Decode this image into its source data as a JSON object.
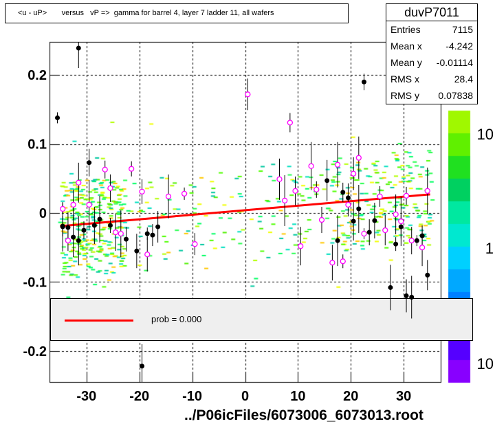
{
  "title": "<u - uP>       versus   vP =>  gamma for barrel 4, layer 7 ladder 11, all wafers",
  "stats": {
    "name": "duvP7011",
    "rows": [
      {
        "label": "Entries",
        "value": "7115"
      },
      {
        "label": "Mean x",
        "value": "-4.242"
      },
      {
        "label": "Mean y",
        "value": "-0.01114"
      },
      {
        "label": "RMS x",
        "value": "28.4"
      },
      {
        "label": "RMS y",
        "value": "0.07838"
      }
    ]
  },
  "legend": {
    "label": "prob = 0.000",
    "color": "#ff0000"
  },
  "footer": "../P06icFiles/6073006_6073013.root",
  "colors": {
    "fit": "#ff0000",
    "profile_filled": "#000000",
    "profile_open": "#ff00ff"
  },
  "chart_data": {
    "type": "scatter",
    "title": "<u - uP>       versus   vP =>  gamma for barrel 4, layer 7 ladder 11, all wafers",
    "xlabel": "",
    "ylabel": "",
    "xlim": [
      -37,
      37
    ],
    "ylim": [
      -0.245,
      0.248
    ],
    "x_ticks": [
      -30,
      -20,
      -10,
      0,
      10,
      20,
      30
    ],
    "y_ticks": [
      0.2,
      0.1,
      0,
      -0.1,
      -0.2
    ],
    "x_tick_labels": [
      "-30",
      "-20",
      "-10",
      "0",
      "10",
      "20",
      "30"
    ],
    "y_tick_labels": [
      "0.2",
      "0.1",
      "0",
      "-0.1",
      "-0.2"
    ],
    "grid": true,
    "colorbar_labels": [
      "10",
      "1",
      "10"
    ],
    "fit_line": {
      "x": [
        -35,
        35
      ],
      "y": [
        -0.019,
        0.027
      ]
    },
    "series": [
      {
        "marker": "filled",
        "x": [
          -35.5,
          -34.5,
          -33.5,
          -32.5,
          -31.5,
          -30.5,
          -29.5,
          -28.5,
          -27.5,
          -25.5,
          -22.5,
          -20.5,
          -19.5,
          -18.5,
          -17.5,
          -16.5,
          15.5,
          17.5,
          18.5,
          19.5,
          20.5,
          21.5,
          22.5,
          23.5,
          24.5,
          27.5,
          28.5,
          29.5,
          30.5,
          31.5,
          32.5,
          33.5,
          34.5,
          -31.5,
          -34.5
        ],
        "y": [
          0.138,
          -0.019,
          -0.021,
          -0.035,
          -0.04,
          -0.025,
          0.073,
          -0.018,
          -0.009,
          -0.018,
          -0.038,
          -0.055,
          -0.222,
          -0.03,
          -0.032,
          -0.02,
          0.047,
          -0.04,
          0.03,
          0.022,
          -0.012,
          0.006,
          0.19,
          -0.028,
          -0.011,
          -0.108,
          -0.045,
          -0.02,
          -0.12,
          -0.122,
          -0.04,
          -0.033,
          -0.09,
          0.239,
          -0.02
        ]
      },
      {
        "marker": "open",
        "x": [
          -34.5,
          -33.5,
          -32.5,
          -31.5,
          -29.5,
          -26.5,
          -25.5,
          -24.5,
          -23.5,
          -21.5,
          -19.5,
          -18.5,
          -14.5,
          -11.5,
          -9.5,
          0.5,
          6.5,
          7.5,
          8.5,
          9.5,
          10.5,
          12.5,
          13.5,
          14.5,
          16.5,
          17.5,
          18.5,
          19.5,
          20.5,
          21.5,
          22.5,
          25.5,
          26.5,
          28.5,
          29.5,
          30.5,
          31.5,
          33.5,
          34.5
        ],
        "y": [
          0.006,
          -0.04,
          0.012,
          0.044,
          0.012,
          0.063,
          0.036,
          -0.028,
          -0.03,
          0.064,
          0.031,
          -0.06,
          0.024,
          0.028,
          -0.045,
          0.172,
          0.049,
          0.018,
          0.131,
          0.032,
          -0.048,
          0.068,
          0.034,
          -0.01,
          -0.072,
          0.07,
          -0.07,
          0.012,
          0.057,
          0.08,
          -0.03,
          0.024,
          -0.025,
          -0.002,
          -0.012,
          0.025,
          -0.04,
          -0.05,
          0.032
        ]
      }
    ]
  }
}
